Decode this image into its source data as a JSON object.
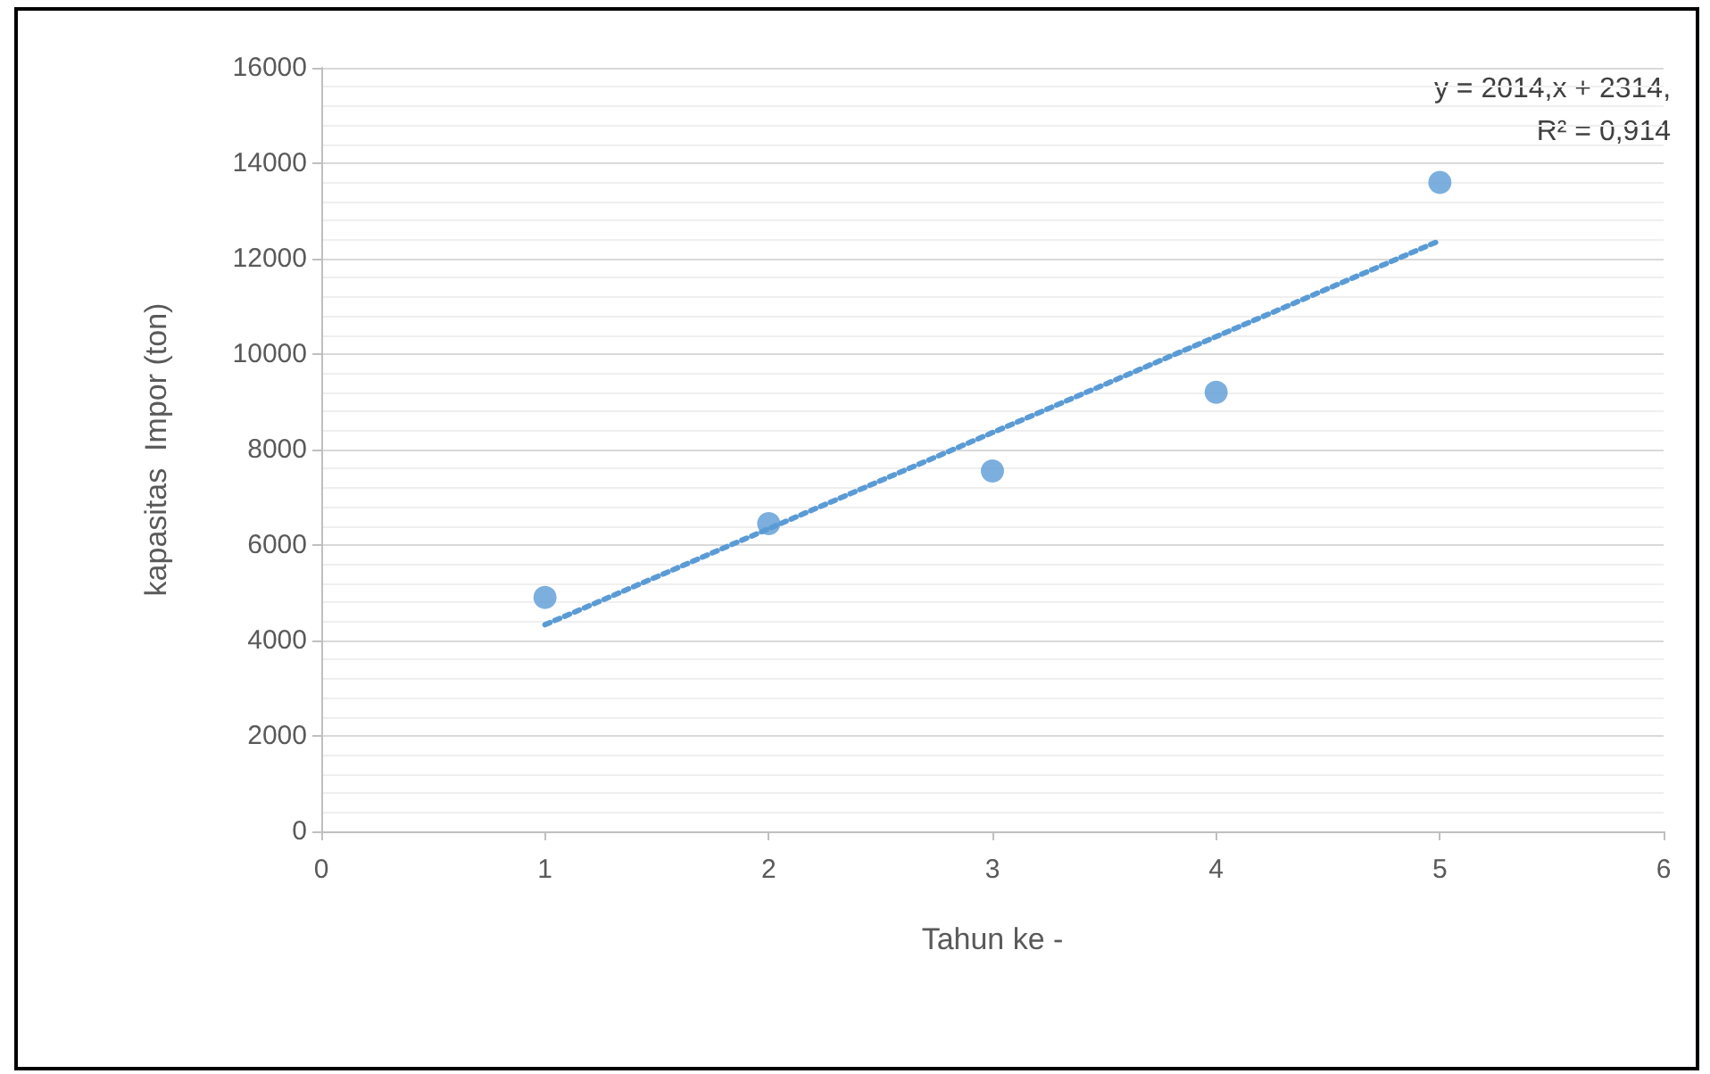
{
  "chart_data": {
    "type": "scatter",
    "xlabel": "Tahun ke -",
    "ylabel": "kapasitas  Impor (ton)",
    "x": [
      1,
      2,
      3,
      4,
      5
    ],
    "series": [
      {
        "color": "#5b9bd5",
        "values": [
          4900,
          6450,
          7550,
          9200,
          13600
        ],
        "marker": "circle"
      },
      {
        "type": "line",
        "color": "#5b9bd5",
        "x": [
          1,
          5
        ],
        "values": [
          4330,
          12380
        ],
        "marker": "none",
        "line_style": "dotted"
      }
    ],
    "xlim": [
      0,
      6
    ],
    "xticks": [
      0,
      1,
      2,
      3,
      4,
      5,
      6
    ],
    "ylim": [
      0,
      16000
    ],
    "yticks": [
      0,
      2000,
      4000,
      6000,
      8000,
      10000,
      12000,
      14000,
      16000
    ],
    "grid": "y",
    "annotations": [
      "y = 2014,x + 2314,",
      "R² = 0,914"
    ]
  }
}
